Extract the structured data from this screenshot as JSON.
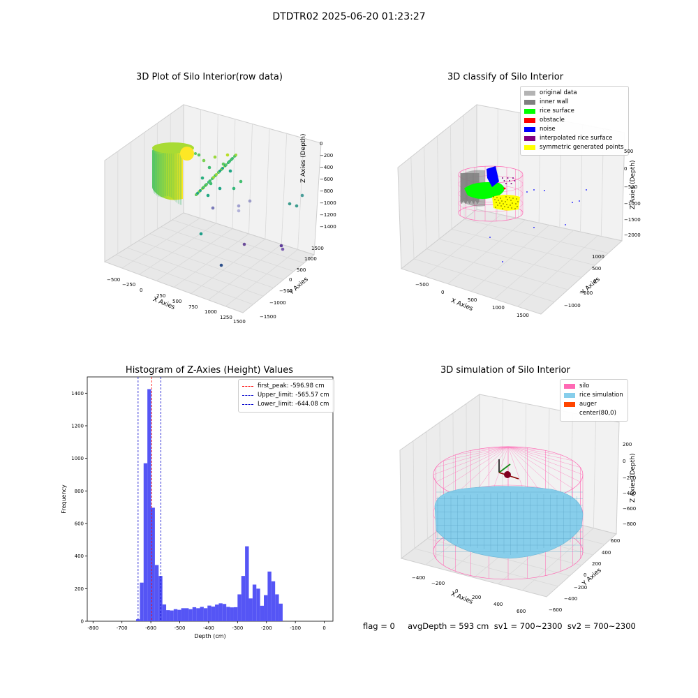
{
  "figure": {
    "suptitle": "DTDTR02 2025-06-20 01:23:27",
    "footer": "flag = 0     avgDepth = 593 cm  sv1 = 700~2300  sv2 = 700~2300"
  },
  "colors": {
    "hist_bar": "#5050f5",
    "first_peak": "#ff0000",
    "limits": "#0000cc",
    "original": "#b3b3b3",
    "inner_wall": "#808080",
    "rice_surface": "#00ff00",
    "obstacle": "#ff0000",
    "noise": "#0000ff",
    "interpolated": "#800080",
    "symmetric": "#ffff00",
    "silo": "#ff69b4",
    "rice_sim": "#87ceeb",
    "auger": "#ff4500"
  },
  "chart_data": [
    {
      "type": "scatter3d",
      "title": "3D Plot of Silo Interior(row data)",
      "xlabel": "X Axies",
      "ylabel": "Y Axies",
      "zlabel": "Z Axies (Depth)",
      "xticks": [
        "−500",
        "−250",
        "0",
        "250",
        "500",
        "750",
        "1000",
        "1250",
        "1500"
      ],
      "yticks": [
        "1500",
        "1000",
        "500",
        "0",
        "−500",
        "−1000",
        "−1500"
      ],
      "zticks": [
        "0",
        "−200",
        "−400",
        "−600",
        "−800",
        "−1000",
        "−1200",
        "−1400"
      ],
      "colormap": "viridis (by depth)"
    },
    {
      "type": "scatter3d",
      "title": "3D classify of Silo Interior",
      "xlabel": "X Axies",
      "ylabel": "Y Axies",
      "zlabel": "Z Axies (Depth)",
      "xticks": [
        "−500",
        "0",
        "500",
        "1000",
        "1500"
      ],
      "yticks": [
        "1000",
        "500",
        "0",
        "−500",
        "−1000"
      ],
      "zticks": [
        "500",
        "0",
        "−500",
        "−1000",
        "−1500",
        "−2000"
      ],
      "legend": [
        {
          "label": "original data",
          "color": "#b3b3b3"
        },
        {
          "label": "inner wall",
          "color": "#808080"
        },
        {
          "label": "rice surface",
          "color": "#00ff00"
        },
        {
          "label": "obstacle",
          "color": "#ff0000"
        },
        {
          "label": "noise",
          "color": "#0000ff"
        },
        {
          "label": "interpolated rice surface",
          "color": "#800080"
        },
        {
          "label": "symmetric generated points",
          "color": "#ffff00"
        }
      ]
    },
    {
      "type": "bar",
      "title": "Histogram of Z-Axies (Height) Values",
      "xlabel": "Depth (cm)",
      "ylabel": "Frequency",
      "xlim": [
        -820,
        30
      ],
      "ylim": [
        0,
        1500
      ],
      "xticks": [
        -800,
        -700,
        -600,
        -500,
        -400,
        -300,
        -200,
        -100,
        0
      ],
      "yticks": [
        0,
        200,
        400,
        600,
        800,
        1000,
        1200,
        1400
      ],
      "bin_width": 13,
      "bin_start": -651,
      "values": [
        12,
        237,
        970,
        1425,
        697,
        345,
        278,
        103,
        68,
        66,
        74,
        70,
        80,
        80,
        74,
        86,
        80,
        88,
        80,
        96,
        90,
        102,
        110,
        106,
        88,
        85,
        86,
        165,
        278,
        460,
        140,
        225,
        200,
        95,
        160,
        305,
        245,
        165,
        108
      ],
      "grid": false,
      "legend_position": "upper right",
      "lines": [
        {
          "label": "first_peak: -596.98 cm",
          "x": -596.98,
          "color": "#ff0000"
        },
        {
          "label": "Upper_limit: -565.57 cm",
          "x": -565.57,
          "color": "#0000cc"
        },
        {
          "label": "Lower_limit: -644.08 cm",
          "x": -644.08,
          "color": "#0000cc"
        }
      ]
    },
    {
      "type": "surface3d",
      "title": "3D simulation of Silo Interior",
      "xlabel": "X Axies",
      "ylabel": "Y Axies",
      "zlabel": "Z Axies (Depth)",
      "xticks": [
        "−400",
        "−200",
        "0",
        "200",
        "400",
        "600"
      ],
      "yticks": [
        "600",
        "400",
        "200",
        "0",
        "−200",
        "−400",
        "−600"
      ],
      "zticks": [
        "200",
        "0",
        "−200",
        "−400",
        "−600",
        "−800"
      ],
      "legend": [
        {
          "label": "silo",
          "color": "#ff69b4"
        },
        {
          "label": "rice simulation",
          "color": "#87ceeb"
        },
        {
          "label": "auger",
          "color": "#ff4500"
        },
        {
          "label": "center(80,0)",
          "color": ""
        }
      ]
    }
  ]
}
